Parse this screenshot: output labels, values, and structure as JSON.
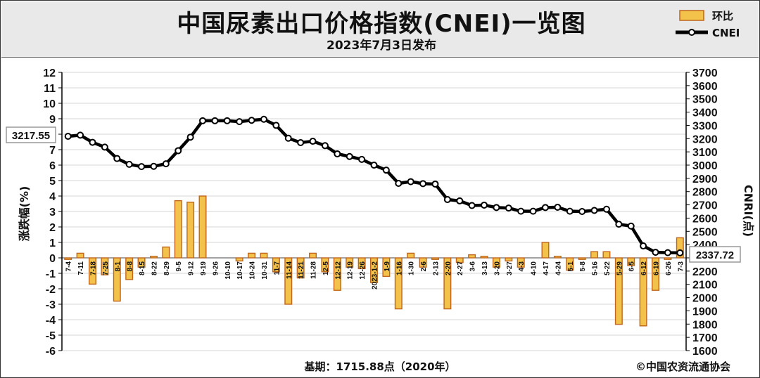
{
  "header": {
    "title": "中国尿素出口价格指数(CNEI)一览图",
    "subtitle": "2023年7月3日发布"
  },
  "legend": {
    "bar_label": "环比",
    "line_label": "CNEI"
  },
  "footer": {
    "base_note": "基期：1715.88点（2020年）",
    "copyright": "©中国农资流通协会"
  },
  "callouts": {
    "start_value": "3217.55",
    "end_value": "2337.72"
  },
  "colors": {
    "bar_fill": "#f2c24a",
    "bar_stroke": "#c0651b",
    "line": "#000000",
    "marker_fill": "#ffffff",
    "grid": "#d6d6d6",
    "header_bg": "#e9e9e9"
  },
  "chart_data": {
    "type": "bar+line",
    "ylabel_left": "涨跌幅(%)",
    "ylabel_right": "CNRI(点)",
    "left_ylim": [
      -6,
      12
    ],
    "right_ylim": [
      1600,
      3700
    ],
    "left_ticks": [
      12,
      11,
      10,
      9,
      8,
      7,
      6,
      5,
      4,
      3,
      2,
      1,
      0,
      -1,
      -2,
      -3,
      -4,
      -5,
      -6
    ],
    "right_ticks": [
      3700,
      3600,
      3500,
      3400,
      3300,
      3200,
      3100,
      3000,
      2900,
      2800,
      2700,
      2600,
      2500,
      2400,
      2300,
      2200,
      2100,
      2000,
      1900,
      1800,
      1700,
      1600
    ],
    "grid": true,
    "legend_position": "top-right",
    "categories": [
      "7-4",
      "7-11",
      "7-18",
      "7-25",
      "8-1",
      "8-8",
      "8-15",
      "8-22",
      "8-29",
      "9-5",
      "9-12",
      "9-19",
      "9-26",
      "10-10",
      "10-17",
      "10-24",
      "10-31",
      "11-7",
      "11-14",
      "11-21",
      "11-28",
      "12-5",
      "12-12",
      "12-19",
      "12-26",
      "2023-1-2",
      "1-9",
      "1-16",
      "1-30",
      "2-6",
      "2-13",
      "2-20",
      "2-27",
      "3-6",
      "3-13",
      "3-20",
      "3-27",
      "4-3",
      "4-10",
      "4-17",
      "4-24",
      "5-1",
      "5-8",
      "5-16",
      "5-22",
      "5-29",
      "6-5",
      "6-12",
      "6-19",
      "6-26",
      "7-3"
    ],
    "series": [
      {
        "name": "环比",
        "type": "bar",
        "axis": "left",
        "values": [
          -0.1,
          0.3,
          -1.7,
          -1.1,
          -2.8,
          -1.4,
          -0.6,
          0.1,
          0.7,
          3.7,
          3.6,
          4.0,
          0.0,
          0.0,
          -0.2,
          0.3,
          0.3,
          -0.9,
          -3.0,
          -1.3,
          0.3,
          -0.9,
          -2.1,
          -0.6,
          -0.7,
          -1.6,
          -1.2,
          -3.3,
          0.3,
          -0.6,
          -0.1,
          -3.3,
          -0.3,
          0.2,
          0.1,
          -0.6,
          -0.2,
          -0.6,
          0.0,
          1.0,
          0.1,
          -0.8,
          -0.1,
          0.4,
          0.4,
          -4.3,
          -0.5,
          -4.4,
          -2.1,
          -0.1,
          1.3
        ]
      },
      {
        "name": "CNEI",
        "type": "line",
        "axis": "right",
        "values": [
          3217.55,
          3226,
          3172,
          3136,
          3050,
          3006,
          2989,
          2991,
          3010,
          3109,
          3211,
          3335,
          3335,
          3335,
          3328,
          3338,
          3346,
          3300,
          3203,
          3170,
          3180,
          3147,
          3085,
          3065,
          3043,
          3000,
          2962,
          2862,
          2875,
          2860,
          2857,
          2740,
          2730,
          2695,
          2698,
          2680,
          2676,
          2652,
          2652,
          2680,
          2682,
          2652,
          2650,
          2658,
          2667,
          2554,
          2540,
          2390,
          2342,
          2339,
          2337.72
        ]
      }
    ]
  }
}
